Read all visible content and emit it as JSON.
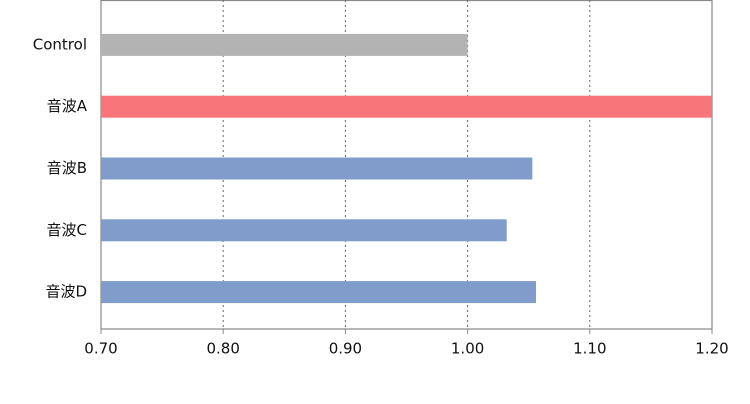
{
  "chart_data": {
    "type": "barh",
    "categories": [
      "Control",
      "音波A",
      "音波B",
      "音波C",
      "音波D"
    ],
    "values": [
      1.0,
      1.2,
      1.053,
      1.032,
      1.056
    ],
    "colors": [
      "#b3b3b3",
      "#f8767a",
      "#7f9ccb",
      "#7f9ccb",
      "#7f9ccb"
    ],
    "xlim": [
      0.7,
      1.2
    ],
    "xticks": [
      {
        "value": 0.7,
        "label": "0.70"
      },
      {
        "value": 0.8,
        "label": "0.80"
      },
      {
        "value": 0.9,
        "label": "0.90"
      },
      {
        "value": 1.0,
        "label": "1.00"
      },
      {
        "value": 1.1,
        "label": "1.10"
      },
      {
        "value": 1.2,
        "label": "1.20"
      }
    ],
    "grid": true
  }
}
